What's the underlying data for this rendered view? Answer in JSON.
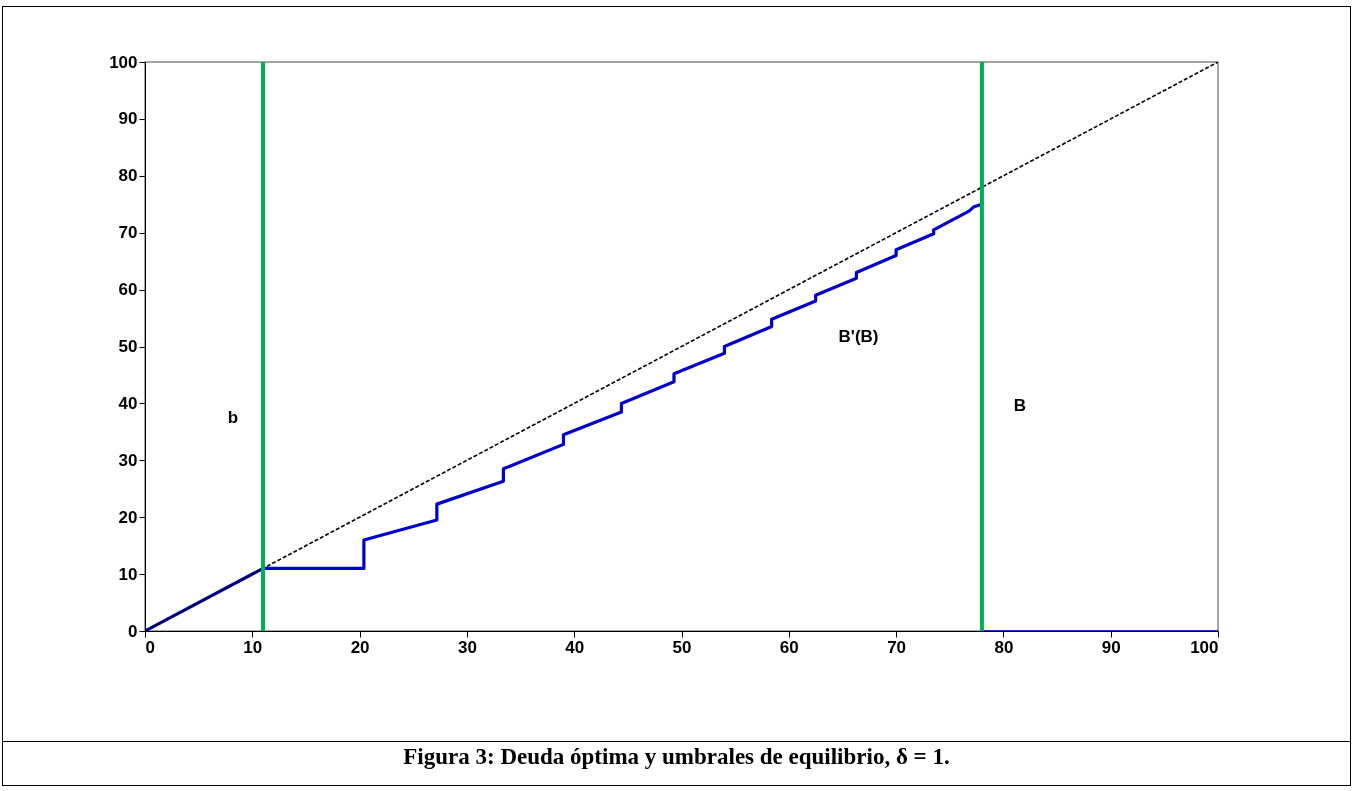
{
  "chart_data": {
    "type": "line",
    "title": "Figura 3: Deuda óptima y umbrales de equilibrio, δ = 1.",
    "xlim": [
      0,
      100
    ],
    "ylim": [
      0,
      100
    ],
    "xticks": [
      0,
      10,
      20,
      30,
      40,
      50,
      60,
      70,
      80,
      90,
      100
    ],
    "yticks": [
      0,
      10,
      20,
      30,
      40,
      50,
      60,
      70,
      80,
      90,
      100
    ],
    "grid": false,
    "marker": "none",
    "series": [
      {
        "color": "#0000cc",
        "line_style": "solid",
        "x": [
          0,
          11,
          20.4,
          20.4,
          27.2,
          27.2,
          33.4,
          33.4,
          39,
          39,
          44.4,
          44.4,
          49.3,
          49.3,
          54,
          54,
          58.4,
          58.4,
          62.5,
          62.5,
          66.3,
          66.3,
          70,
          70,
          73.5,
          73.5,
          76.8,
          77.2,
          78
        ],
        "values": [
          0,
          11,
          11,
          16,
          19.5,
          22.3,
          26.3,
          28.5,
          32.8,
          34.5,
          38.5,
          40,
          43.8,
          45.2,
          48.8,
          50,
          53.5,
          54.8,
          58,
          59,
          62,
          63,
          66,
          67,
          69.8,
          70.5,
          73.8,
          74.5,
          75
        ]
      },
      {
        "color": "#000000",
        "line_style": "dashed",
        "x": [
          0,
          100
        ],
        "values": [
          0,
          100
        ]
      },
      {
        "color": "#0000cc",
        "line_style": "solid",
        "x": [
          78,
          100
        ],
        "values": [
          0,
          0
        ]
      }
    ],
    "ref_lines": [
      {
        "axis": "x",
        "value": 11,
        "color": "#00b050",
        "label": "b"
      },
      {
        "axis": "x",
        "value": 78,
        "color": "#00b050",
        "label": "B"
      }
    ],
    "annotations": [
      "B'(B)"
    ]
  }
}
